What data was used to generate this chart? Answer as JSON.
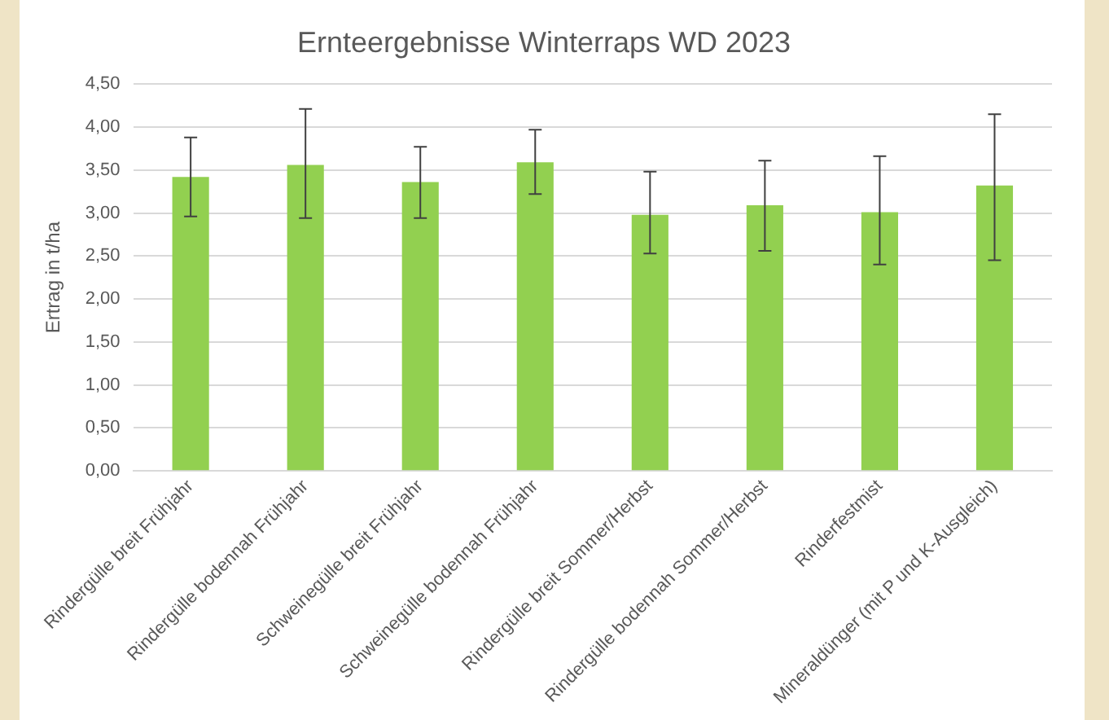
{
  "chart_data": {
    "type": "bar",
    "title": "Ernteergebnisse Winterraps WD 2023",
    "ylabel": "Ertrag in t/ha",
    "categories": [
      "Rindergülle breit Frühjahr",
      "Rindergülle bodennah Frühjahr",
      "Schweinegülle breit Frühjahr",
      "Schweinegülle bodennah Frühjahr",
      "Rindergülle breit Sommer/Herbst",
      "Rindergülle bodennah Sommer/Herbst",
      "Rinderfestmist",
      "Mineraldünger (mit P und K-Ausgleich)"
    ],
    "values": [
      3.42,
      3.56,
      3.36,
      3.59,
      2.98,
      3.09,
      3.01,
      3.32
    ],
    "errors": [
      [
        2.96,
        3.88
      ],
      [
        2.94,
        4.21
      ],
      [
        2.94,
        3.77
      ],
      [
        3.22,
        3.97
      ],
      [
        2.53,
        3.48
      ],
      [
        2.56,
        3.61
      ],
      [
        2.4,
        3.66
      ],
      [
        2.45,
        4.15
      ]
    ],
    "color": "#92d050",
    "ylim": [
      0,
      4.5
    ],
    "yticks": [
      {
        "value": 0,
        "label": "0,00"
      },
      {
        "value": 0.5,
        "label": "0,50"
      },
      {
        "value": 1,
        "label": "1,00"
      },
      {
        "value": 1.5,
        "label": "1,50"
      },
      {
        "value": 2,
        "label": "2,00"
      },
      {
        "value": 2.5,
        "label": "2,50"
      },
      {
        "value": 3,
        "label": "3,00"
      },
      {
        "value": 3.5,
        "label": "3,50"
      },
      {
        "value": 4,
        "label": "4,00"
      },
      {
        "value": 4.5,
        "label": "4,50"
      }
    ],
    "grid": "y",
    "legend": false
  }
}
